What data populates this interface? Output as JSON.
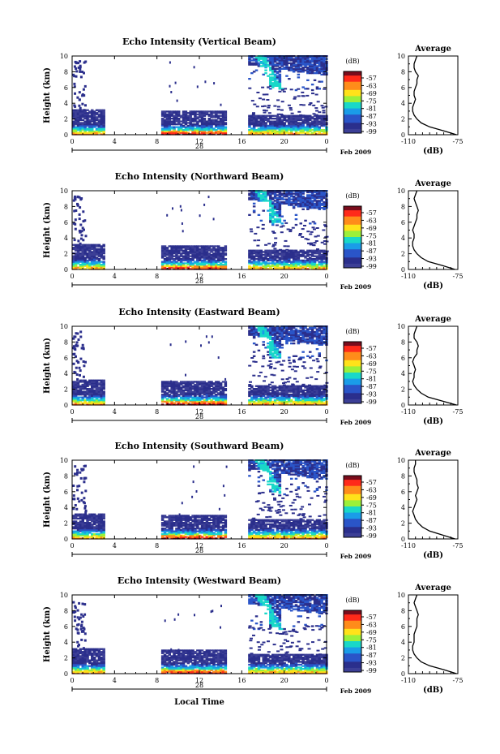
{
  "chart_data": [
    {
      "type": "heatmap",
      "title": "Echo Intensity (Vertical Beam)",
      "ylabel": "Height (km)",
      "xticks": [
        "0",
        "4",
        "8",
        "12",
        "16",
        "20",
        "0"
      ],
      "yticks": [
        "0",
        "2",
        "4",
        "6",
        "8",
        "10"
      ],
      "xlim": [
        0,
        24
      ],
      "ylim": [
        0,
        10
      ],
      "date_label": "28",
      "date_suffix": "Feb 2009",
      "colorbar": {
        "label": "(dB)",
        "ticks": [
          "-57",
          "-63",
          "-69",
          "-75",
          "-81",
          "-87",
          "-93",
          "-99"
        ]
      },
      "average": {
        "title": "Average",
        "xlabel": "(dB)",
        "xticks": [
          "-110",
          "-75"
        ],
        "yticks": [
          "0",
          "2",
          "4",
          "6",
          "8",
          "10"
        ],
        "profile": [
          [
            0,
            -76
          ],
          [
            0.5,
            -85
          ],
          [
            1,
            -95
          ],
          [
            1.5,
            -101
          ],
          [
            2,
            -104
          ],
          [
            2.5,
            -106
          ],
          [
            3,
            -107
          ],
          [
            3.5,
            -107
          ],
          [
            4,
            -106
          ],
          [
            4.5,
            -105
          ],
          [
            5,
            -106
          ],
          [
            5.5,
            -106
          ],
          [
            6,
            -105
          ],
          [
            6.5,
            -104
          ],
          [
            7,
            -104
          ],
          [
            7.5,
            -103
          ],
          [
            8,
            -105
          ],
          [
            8.5,
            -106
          ],
          [
            9,
            -106
          ],
          [
            9.5,
            -105
          ],
          [
            10,
            -104
          ]
        ]
      }
    },
    {
      "type": "heatmap",
      "title": "Echo Intensity (Northward Beam)",
      "ylabel": "Height (km)",
      "xticks": [
        "0",
        "4",
        "8",
        "12",
        "16",
        "20",
        "0"
      ],
      "yticks": [
        "0",
        "2",
        "4",
        "6",
        "8",
        "10"
      ],
      "xlim": [
        0,
        24
      ],
      "ylim": [
        0,
        10
      ],
      "date_label": "28",
      "date_suffix": "Feb 2009",
      "colorbar": {
        "label": "(dB)",
        "ticks": [
          "-57",
          "-63",
          "-69",
          "-75",
          "-81",
          "-87",
          "-93",
          "-99"
        ]
      },
      "average": {
        "title": "Average",
        "xlabel": "(dB)",
        "xticks": [
          "-110",
          "-75"
        ],
        "yticks": [
          "0",
          "2",
          "4",
          "6",
          "8",
          "10"
        ],
        "profile": [
          [
            0,
            -77
          ],
          [
            0.5,
            -86
          ],
          [
            1,
            -96
          ],
          [
            1.5,
            -101
          ],
          [
            2,
            -104
          ],
          [
            2.5,
            -106
          ],
          [
            3,
            -107
          ],
          [
            3.5,
            -107
          ],
          [
            4,
            -106
          ],
          [
            4.5,
            -106
          ],
          [
            5,
            -107
          ],
          [
            5.5,
            -106
          ],
          [
            6,
            -105
          ],
          [
            6.5,
            -104
          ],
          [
            7,
            -104
          ],
          [
            7.5,
            -103
          ],
          [
            8,
            -104
          ],
          [
            8.5,
            -105
          ],
          [
            9,
            -106
          ],
          [
            9.5,
            -105
          ],
          [
            10,
            -104
          ]
        ]
      }
    },
    {
      "type": "heatmap",
      "title": "Echo Intensity (Eastward Beam)",
      "ylabel": "Height (km)",
      "xticks": [
        "0",
        "4",
        "8",
        "12",
        "16",
        "20",
        "0"
      ],
      "yticks": [
        "0",
        "2",
        "4",
        "6",
        "8",
        "10"
      ],
      "xlim": [
        0,
        24
      ],
      "ylim": [
        0,
        10
      ],
      "date_label": "28",
      "date_suffix": "Feb 2009",
      "colorbar": {
        "label": "(dB)",
        "ticks": [
          "-57",
          "-63",
          "-69",
          "-75",
          "-81",
          "-87",
          "-93",
          "-99"
        ]
      },
      "average": {
        "title": "Average",
        "xlabel": "(dB)",
        "xticks": [
          "-110",
          "-75"
        ],
        "yticks": [
          "0",
          "2",
          "4",
          "6",
          "8",
          "10"
        ],
        "profile": [
          [
            0,
            -76
          ],
          [
            0.5,
            -86
          ],
          [
            1,
            -96
          ],
          [
            1.5,
            -101
          ],
          [
            2,
            -104
          ],
          [
            2.5,
            -106
          ],
          [
            3,
            -107
          ],
          [
            3.5,
            -106
          ],
          [
            4,
            -106
          ],
          [
            4.5,
            -105
          ],
          [
            5,
            -106
          ],
          [
            5.5,
            -107
          ],
          [
            6,
            -106
          ],
          [
            6.5,
            -104
          ],
          [
            7,
            -104
          ],
          [
            7.5,
            -103
          ],
          [
            8,
            -104
          ],
          [
            8.5,
            -106
          ],
          [
            9,
            -106
          ],
          [
            9.5,
            -105
          ],
          [
            10,
            -104
          ]
        ]
      }
    },
    {
      "type": "heatmap",
      "title": "Echo Intensity (Southward Beam)",
      "ylabel": "Height (km)",
      "xticks": [
        "0",
        "4",
        "8",
        "12",
        "16",
        "20",
        "0"
      ],
      "yticks": [
        "0",
        "2",
        "4",
        "6",
        "8",
        "10"
      ],
      "xlim": [
        0,
        24
      ],
      "ylim": [
        0,
        10
      ],
      "date_label": "28",
      "date_suffix": "Feb 2009",
      "colorbar": {
        "label": "(dB)",
        "ticks": [
          "-57",
          "-63",
          "-69",
          "-75",
          "-81",
          "-87",
          "-93",
          "-99"
        ]
      },
      "average": {
        "title": "Average",
        "xlabel": "(dB)",
        "xticks": [
          "-110",
          "-75"
        ],
        "yticks": [
          "0",
          "2",
          "4",
          "6",
          "8",
          "10"
        ],
        "profile": [
          [
            0,
            -77
          ],
          [
            0.5,
            -86
          ],
          [
            1,
            -95
          ],
          [
            1.5,
            -100
          ],
          [
            2,
            -103
          ],
          [
            2.5,
            -105
          ],
          [
            3,
            -106
          ],
          [
            3.5,
            -107
          ],
          [
            4,
            -106
          ],
          [
            4.5,
            -105
          ],
          [
            5,
            -104
          ],
          [
            5.5,
            -105
          ],
          [
            6,
            -104
          ],
          [
            6.5,
            -103
          ],
          [
            7,
            -104
          ],
          [
            7.5,
            -104
          ],
          [
            8,
            -105
          ],
          [
            8.5,
            -106
          ],
          [
            9,
            -106
          ],
          [
            9.5,
            -105
          ],
          [
            10,
            -105
          ]
        ]
      }
    },
    {
      "type": "heatmap",
      "title": "Echo Intensity (Westward Beam)",
      "ylabel": "Height (km)",
      "xticks": [
        "0",
        "4",
        "8",
        "12",
        "16",
        "20",
        "0"
      ],
      "yticks": [
        "0",
        "2",
        "4",
        "6",
        "8",
        "10"
      ],
      "xlim": [
        0,
        24
      ],
      "ylim": [
        0,
        10
      ],
      "date_label": "28",
      "date_suffix": "Feb 2009",
      "xlabel": "Local Time",
      "colorbar": {
        "label": "(dB)",
        "ticks": [
          "-57",
          "-63",
          "-69",
          "-75",
          "-81",
          "-87",
          "-93",
          "-99"
        ]
      },
      "average": {
        "title": "Average",
        "xlabel": "(dB)",
        "xticks": [
          "-110",
          "-75"
        ],
        "yticks": [
          "0",
          "2",
          "4",
          "6",
          "8",
          "10"
        ],
        "profile": [
          [
            0,
            -76
          ],
          [
            0.5,
            -85
          ],
          [
            1,
            -95
          ],
          [
            1.5,
            -101
          ],
          [
            2,
            -104
          ],
          [
            2.5,
            -106
          ],
          [
            3,
            -107
          ],
          [
            3.5,
            -107
          ],
          [
            4,
            -106
          ],
          [
            4.5,
            -106
          ],
          [
            5,
            -106
          ],
          [
            5.5,
            -105
          ],
          [
            6,
            -104
          ],
          [
            6.5,
            -104
          ],
          [
            7,
            -104
          ],
          [
            7.5,
            -103
          ],
          [
            8,
            -104
          ],
          [
            8.5,
            -105
          ],
          [
            9,
            -106
          ],
          [
            9.5,
            -105
          ],
          [
            10,
            -104
          ]
        ]
      }
    }
  ],
  "colors": {
    "scale": [
      "#7a0c1c",
      "#ff2a1a",
      "#ff8c1a",
      "#ffe21a",
      "#9bf03a",
      "#19d8c8",
      "#1a9ce8",
      "#2a55c8",
      "#2b2f8c",
      "#3c3f96"
    ]
  }
}
